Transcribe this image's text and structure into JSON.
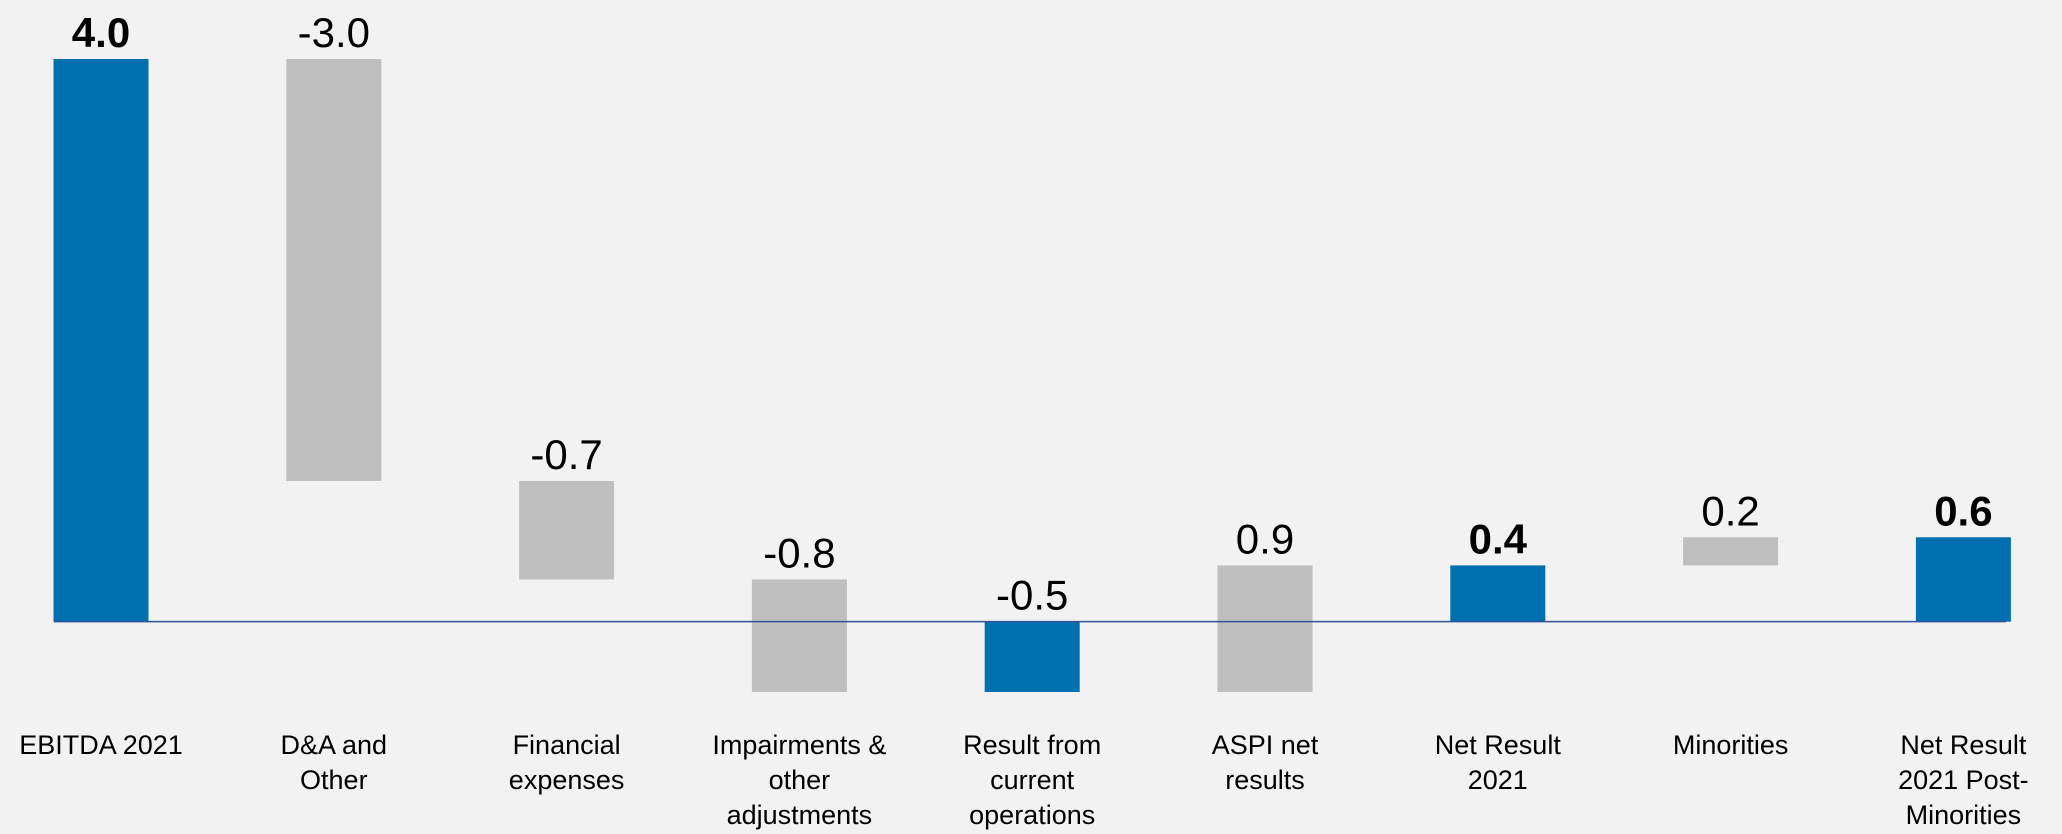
{
  "chart_data": {
    "type": "waterfall",
    "categories": [
      "EBITDA 2021",
      "D&A and Other",
      "Financial expenses",
      "Impairments & other adjustments",
      "Result from current operations",
      "ASPI net results",
      "Net Result 2021",
      "Minorities",
      "Net Result 2021 Post-Minorities"
    ],
    "values": [
      4.0,
      -3.0,
      -0.7,
      -0.8,
      -0.5,
      0.9,
      0.4,
      0.2,
      0.6
    ],
    "value_labels": [
      "4.0",
      "-3.0",
      "-0.7",
      "-0.8",
      "-0.5",
      "0.9",
      "0.4",
      "0.2",
      "0.6"
    ],
    "totals": [
      true,
      false,
      false,
      false,
      true,
      false,
      true,
      false,
      true
    ],
    "total_color": "#0070b0",
    "step_color": "#bfbfbf",
    "axis_color": "#2f5597"
  }
}
